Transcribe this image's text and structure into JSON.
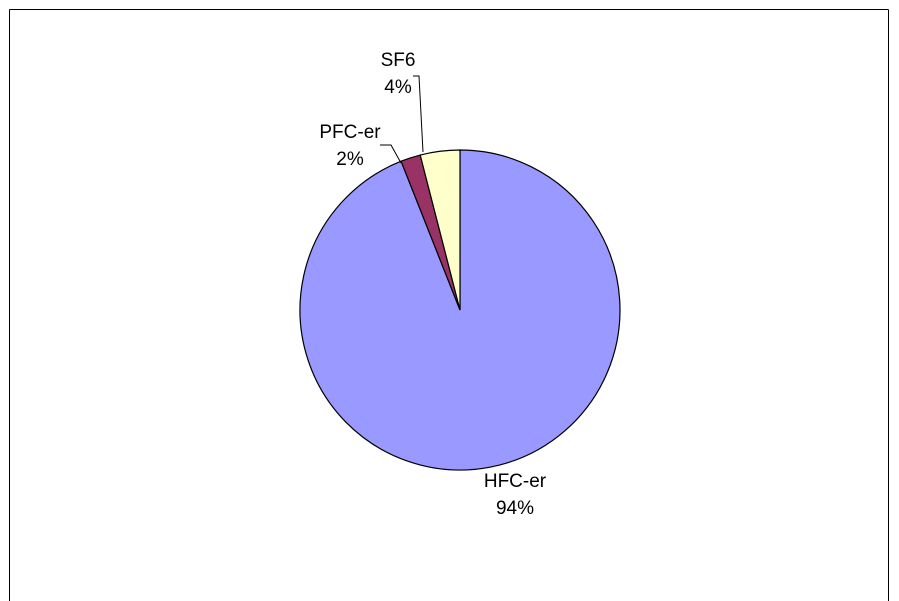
{
  "chart_data": {
    "type": "pie",
    "categories": [
      "HFC-er",
      "PFC-er",
      "SF6"
    ],
    "values": [
      94,
      2,
      4
    ],
    "value_labels": [
      "94%",
      "2%",
      "4%"
    ],
    "colors": [
      "#9999ff",
      "#993366",
      "#ffffcc"
    ]
  }
}
